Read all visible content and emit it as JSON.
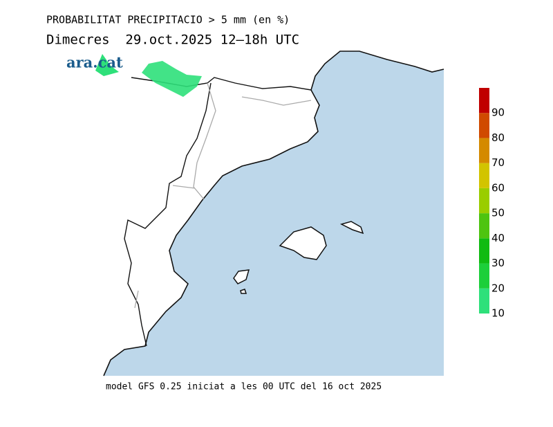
{
  "title": "PROBABILITAT PRECIPITACIO > 5 mm (en %)",
  "subtitle": "Dimecres  29.oct.2025 12—18h UTC",
  "logo": "ara.cat",
  "footer": "model GFS 0.25 iniciat a les 00 UTC del 16 oct 2025",
  "colorbar": {
    "lim": [
      10,
      100
    ],
    "ticks": [
      10,
      20,
      30,
      40,
      50,
      60,
      70,
      80,
      90
    ],
    "colors": [
      "#2ee07a",
      "#1ccf3a",
      "#10bb12",
      "#4ec410",
      "#9acd00",
      "#d2c400",
      "#d48a00",
      "#d04a00",
      "#c00000"
    ]
  }
}
